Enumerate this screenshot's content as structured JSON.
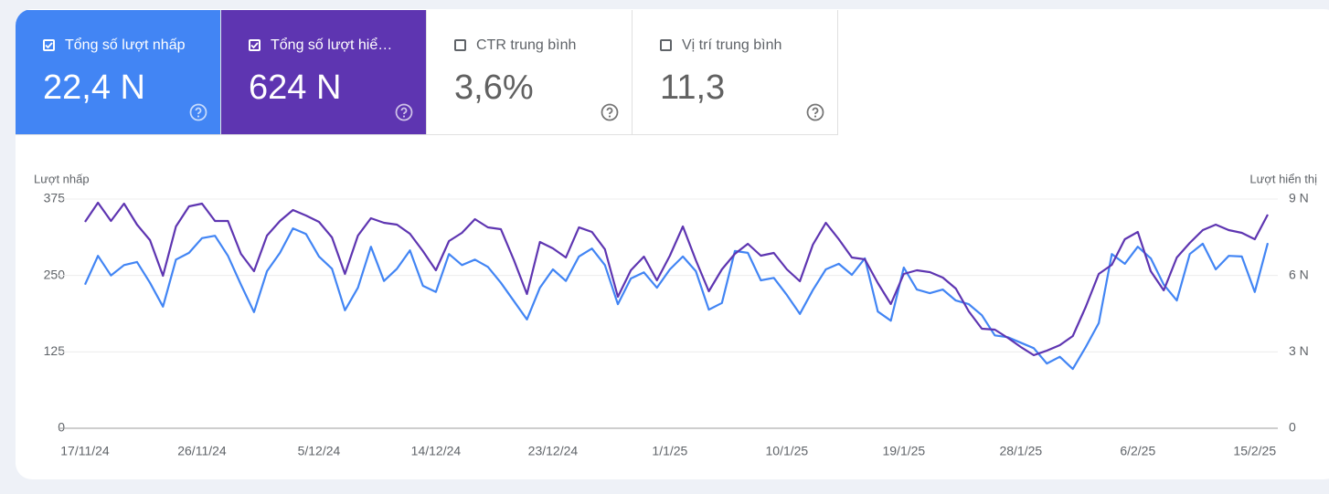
{
  "metrics": [
    {
      "label": "Tổng số lượt nhấp",
      "value": "22,4 N",
      "selected": true,
      "color": "#4285f4"
    },
    {
      "label": "Tổng số lượt hiể…",
      "value": "624 N",
      "selected": true,
      "color": "#5e35b1"
    },
    {
      "label": "CTR trung bình",
      "value": "3,6%",
      "selected": false,
      "color": "#ffffff"
    },
    {
      "label": "Vị trí trung bình",
      "value": "11,3",
      "selected": false,
      "color": "#ffffff"
    }
  ],
  "chart_data": {
    "type": "line",
    "y_label": "Lượt nhấp",
    "y2_label": "Lượt hiển thị",
    "categories": [
      "17/11/24",
      null,
      null,
      null,
      null,
      null,
      null,
      null,
      null,
      "26/11/24",
      null,
      null,
      null,
      null,
      null,
      null,
      null,
      null,
      "5/12/24",
      null,
      null,
      null,
      null,
      null,
      null,
      null,
      null,
      "14/12/24",
      null,
      null,
      null,
      null,
      null,
      null,
      null,
      null,
      "23/12/24",
      null,
      null,
      null,
      null,
      null,
      null,
      null,
      null,
      "1/1/25",
      null,
      null,
      null,
      null,
      null,
      null,
      null,
      null,
      "10/1/25",
      null,
      null,
      null,
      null,
      null,
      null,
      null,
      null,
      "19/1/25",
      null,
      null,
      null,
      null,
      null,
      null,
      null,
      null,
      "28/1/25",
      null,
      null,
      null,
      null,
      null,
      null,
      null,
      null,
      "6/2/25",
      null,
      null,
      null,
      null,
      null,
      null,
      null,
      null,
      "15/2/25",
      null
    ],
    "series": [
      {
        "name": "Lượt nhấp",
        "color": "#4285f4",
        "values": [
          235,
          282,
          250,
          267,
          272,
          238,
          199,
          276,
          287,
          311,
          315,
          282,
          235,
          190,
          257,
          287,
          327,
          318,
          281,
          261,
          193,
          230,
          297,
          241,
          261,
          291,
          233,
          223,
          285,
          267,
          276,
          264,
          238,
          208,
          178,
          230,
          260,
          241,
          281,
          294,
          267,
          203,
          245,
          255,
          230,
          260,
          281,
          257,
          194,
          205,
          290,
          287,
          242,
          246,
          218,
          187,
          226,
          260,
          269,
          251,
          278,
          191,
          176,
          263,
          227,
          221,
          227,
          209,
          203,
          185,
          152,
          149,
          140,
          131,
          106,
          117,
          97,
          133,
          172,
          285,
          269,
          297,
          278,
          235,
          209,
          285,
          302,
          260,
          282,
          281,
          223,
          303
        ]
      },
      {
        "name": "Lượt hiển thị",
        "color": "#5e35b1",
        "axis": "y2",
        "values": [
          8104,
          8857,
          8140,
          8822,
          7997,
          7387,
          5989,
          7925,
          8714,
          8822,
          8140,
          8140,
          6849,
          6168,
          7566,
          8140,
          8571,
          8355,
          8104,
          7495,
          6060,
          7566,
          8248,
          8068,
          7997,
          7638,
          6957,
          6204,
          7351,
          7674,
          8212,
          7889,
          7817,
          6598,
          5271,
          7315,
          7064,
          6706,
          7889,
          7710,
          7028,
          5164,
          6204,
          6742,
          5809,
          6778,
          7925,
          6598,
          5379,
          6240,
          6849,
          7244,
          6778,
          6885,
          6240,
          5773,
          7208,
          8068,
          7423,
          6706,
          6634,
          5702,
          4877,
          6060,
          6204,
          6132,
          5917,
          5487,
          4590,
          3909,
          3873,
          3550,
          3192,
          2869,
          3048,
          3263,
          3622,
          4769,
          6060,
          6419,
          7423,
          7710,
          6168,
          5415,
          6706,
          7280,
          7781,
          7997,
          7781,
          7674,
          7423,
          8391
        ]
      }
    ],
    "ylim": [
      0,
      375
    ],
    "yticks": [
      0,
      125,
      250,
      375
    ],
    "y2lim": [
      0,
      9000
    ],
    "y2ticks": [
      0,
      {
        "value": 3000,
        "label": "3 N"
      },
      {
        "value": 6000,
        "label": "6 N"
      },
      {
        "value": 9000,
        "label": "9 N"
      }
    ],
    "grid": true
  }
}
